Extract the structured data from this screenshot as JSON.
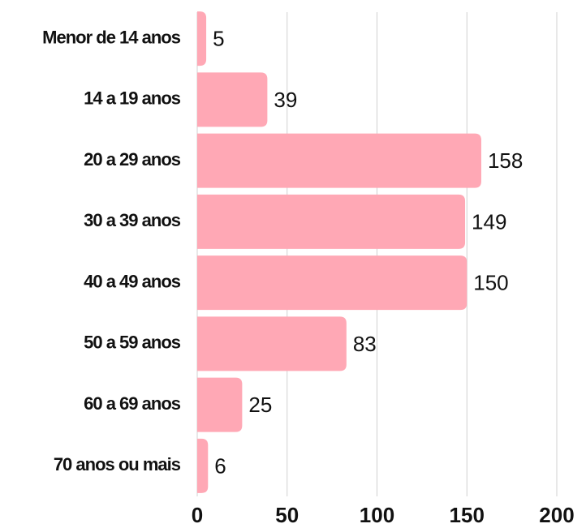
{
  "chart_data": {
    "type": "bar",
    "orientation": "horizontal",
    "categories": [
      "Menor de 14 anos",
      "14 a 19 anos",
      "20 a 29 anos",
      "30 a 39 anos",
      "40 a 49 anos",
      "50 a 59 anos",
      "60 a 69 anos",
      "70 anos ou mais"
    ],
    "values": [
      5,
      39,
      158,
      149,
      150,
      83,
      25,
      6
    ],
    "color": "#ffa8b5",
    "xlim": [
      0,
      200
    ],
    "xticks": [
      0,
      50,
      100,
      150,
      200
    ],
    "grid": true
  }
}
